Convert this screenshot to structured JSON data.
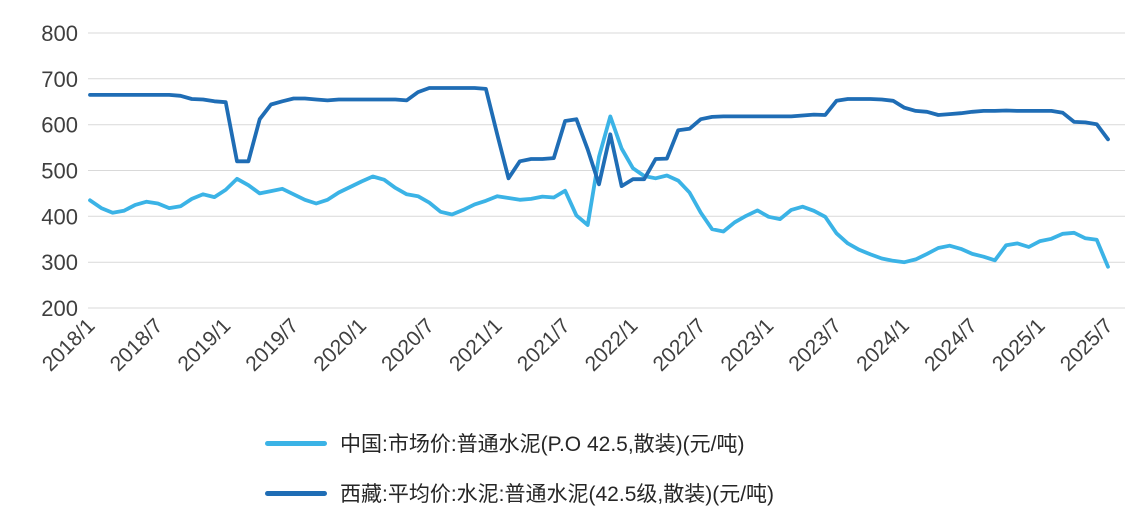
{
  "chart_data": {
    "type": "line",
    "title": "",
    "xlabel": "",
    "ylabel": "",
    "ylim": [
      200,
      800
    ],
    "y_ticks": [
      200,
      300,
      400,
      500,
      600,
      700,
      800
    ],
    "grid": "horizontal",
    "legend_position": "bottom",
    "x_start": "2018/1",
    "x_end": "2025/7",
    "x_interval_months": 1,
    "tick_every": 6,
    "x_tick_labels": [
      "2018/1",
      "2018/7",
      "2019/1",
      "2019/7",
      "2020/1",
      "2020/7",
      "2021/1",
      "2021/7",
      "2022/1",
      "2022/7",
      "2023/1",
      "2023/7",
      "2024/1",
      "2024/7",
      "2025/1",
      "2025/7"
    ],
    "series": [
      {
        "name": "中国:市场价:普通水泥(P.O 42.5,散装)(元/吨)",
        "color": "#3BB3E6",
        "values": [
          435,
          418,
          408,
          412,
          425,
          432,
          428,
          418,
          422,
          438,
          448,
          442,
          458,
          482,
          468,
          450,
          455,
          460,
          448,
          436,
          428,
          436,
          452,
          464,
          476,
          487,
          480,
          462,
          448,
          444,
          430,
          410,
          404,
          414,
          426,
          434,
          444,
          440,
          436,
          438,
          443,
          441,
          456,
          402,
          381,
          530,
          618,
          548,
          505,
          488,
          483,
          489,
          478,
          452,
          408,
          372,
          367,
          387,
          401,
          413,
          399,
          394,
          414,
          421,
          412,
          399,
          363,
          341,
          327,
          317,
          308,
          303,
          300,
          306,
          318,
          331,
          336,
          329,
          318,
          312,
          304,
          337,
          341,
          333,
          346,
          351,
          362,
          364,
          352,
          349,
          290
        ]
      },
      {
        "name": "西藏:平均价:水泥:普通水泥(42.5级,散装)(元/吨)",
        "color": "#1F6DB5",
        "values": [
          665,
          665,
          665,
          665,
          665,
          665,
          665,
          665,
          663,
          656,
          655,
          651,
          649,
          520,
          520,
          612,
          644,
          651,
          657,
          657,
          655,
          653,
          655,
          655,
          655,
          655,
          655,
          655,
          653,
          671,
          680,
          680,
          680,
          680,
          680,
          678,
          579,
          483,
          520,
          525,
          525,
          527,
          608,
          612,
          546,
          470,
          579,
          466,
          481,
          481,
          525,
          526,
          588,
          591,
          612,
          617,
          618,
          618,
          618,
          618,
          618,
          618,
          618,
          620,
          622,
          621,
          652,
          656,
          656,
          656,
          655,
          652,
          637,
          630,
          628,
          621,
          623,
          625,
          628,
          630,
          630,
          631,
          630,
          630,
          630,
          630,
          626,
          606,
          605,
          601,
          568
        ]
      }
    ]
  },
  "style": {
    "grid_color": "#D9D9D9",
    "axis_text_color": "#3f3f3f",
    "background": "#ffffff"
  }
}
